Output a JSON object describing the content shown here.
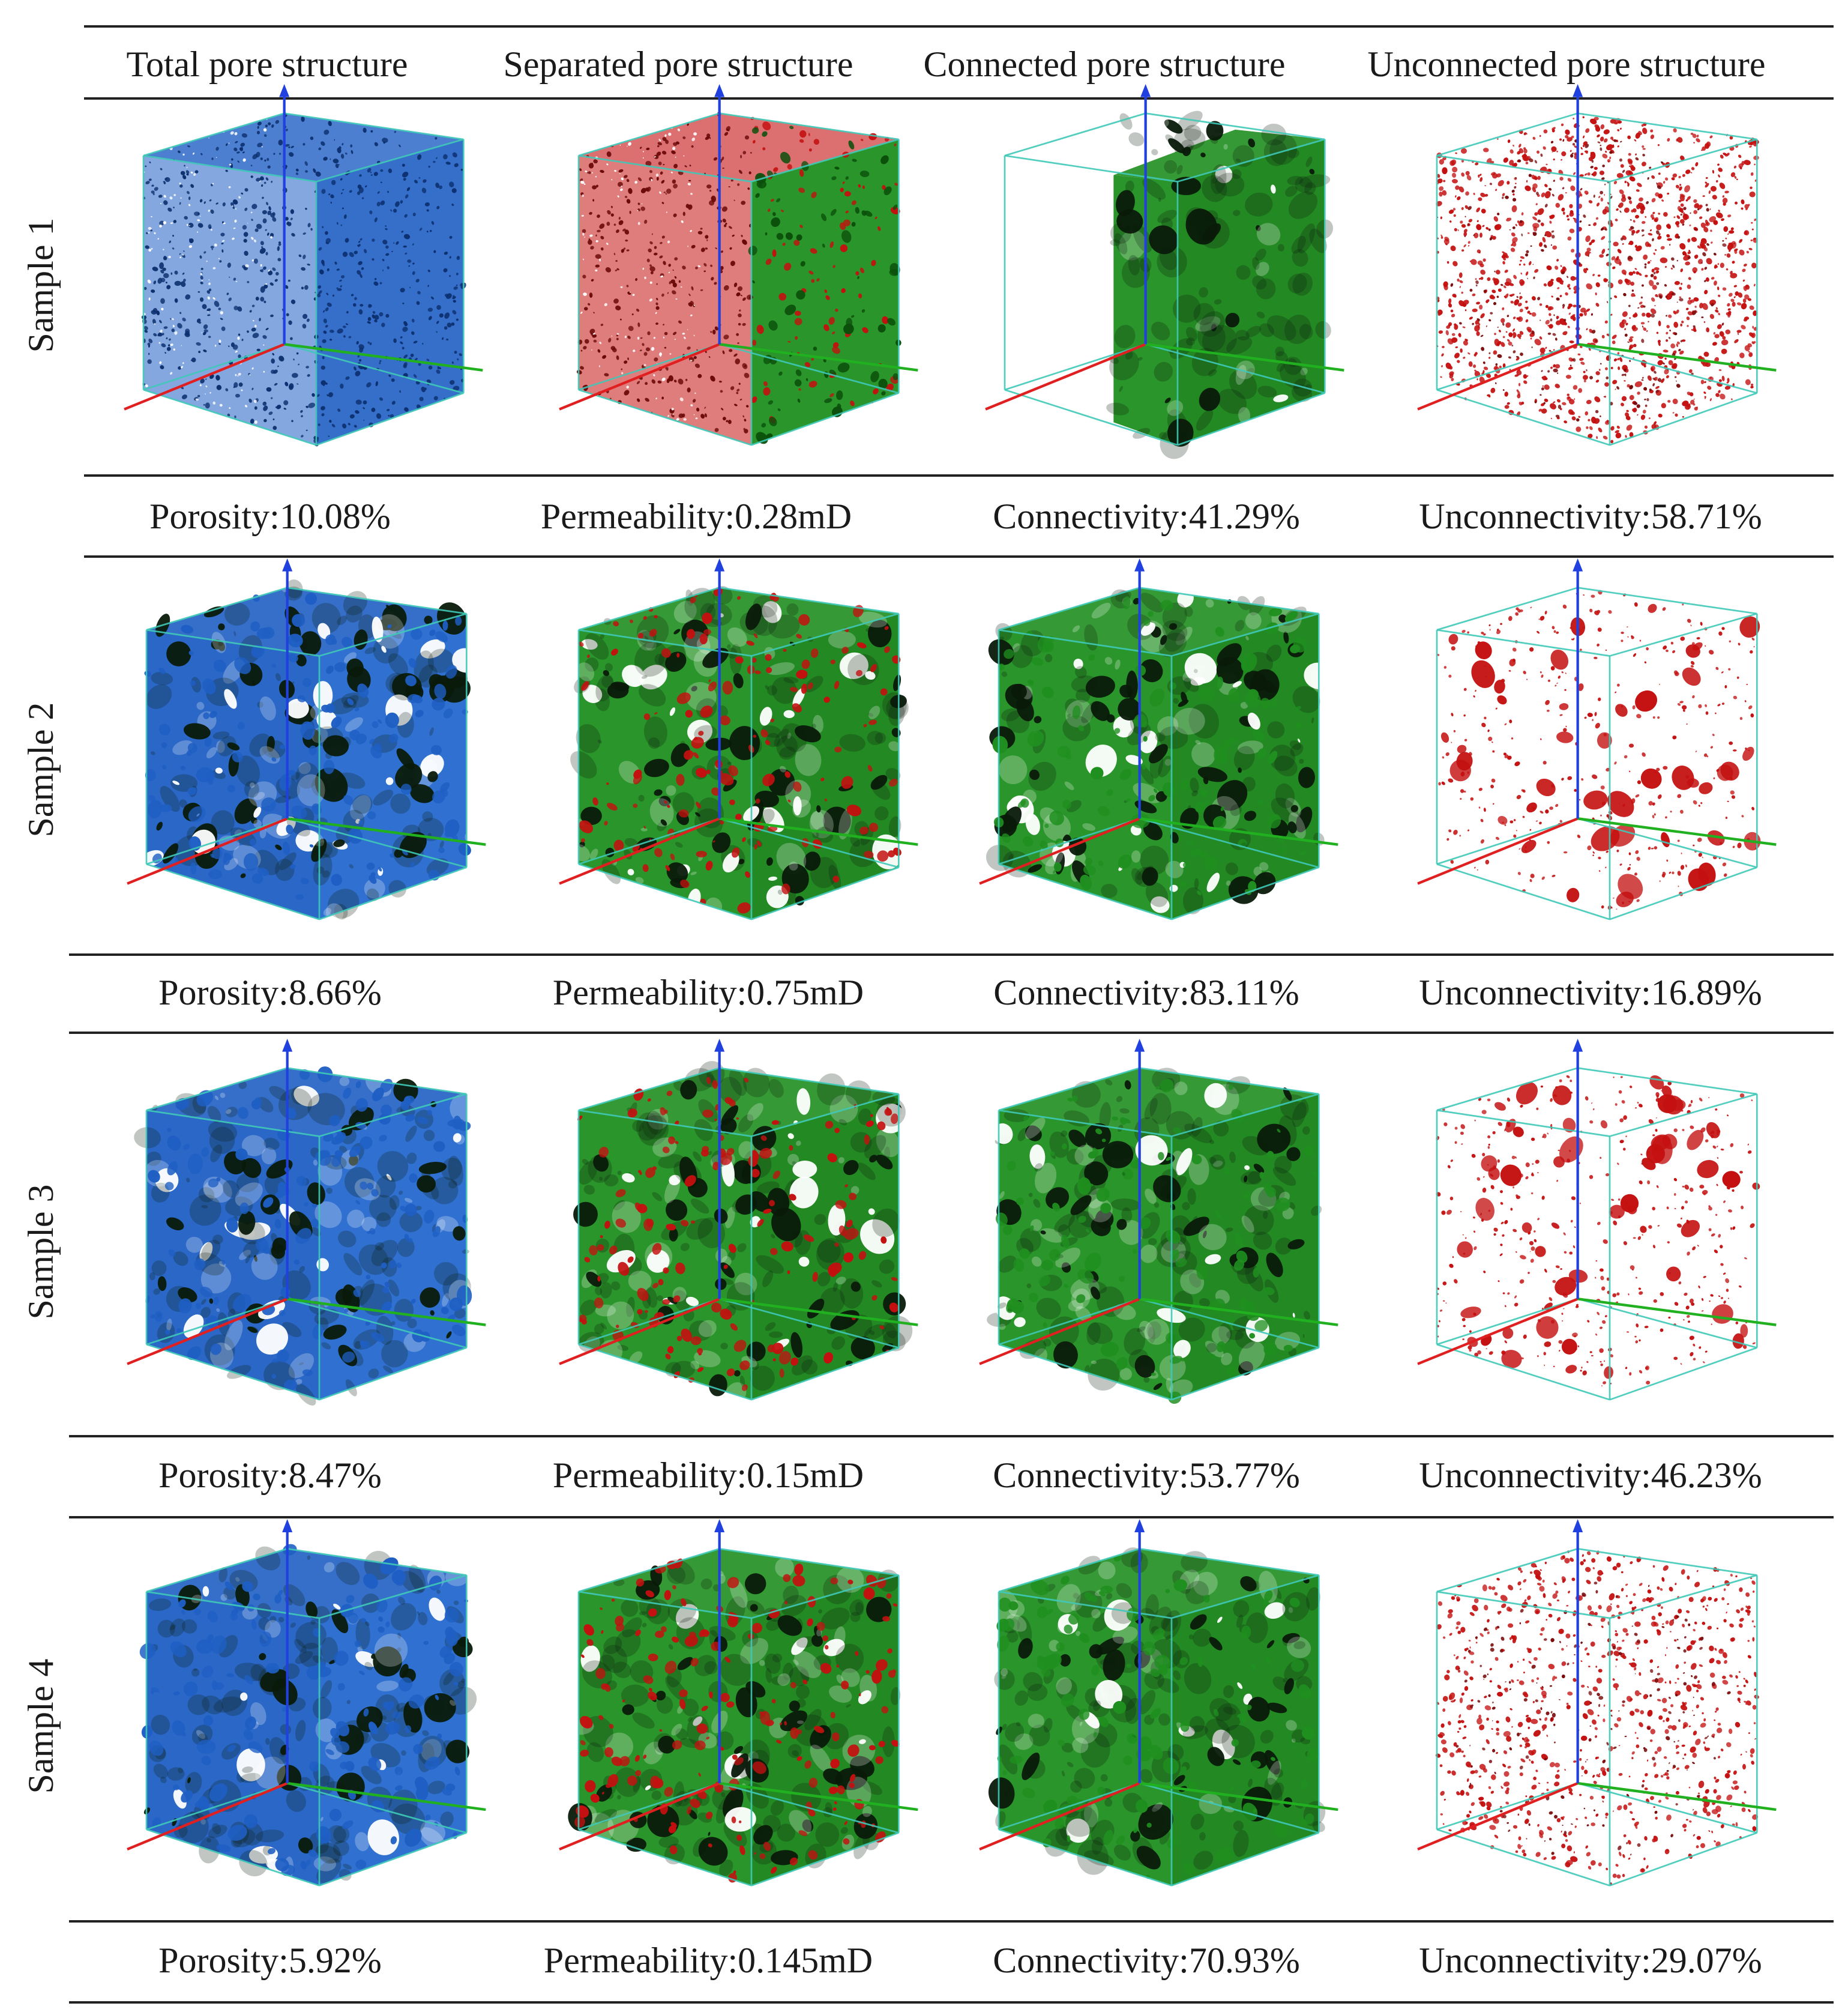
{
  "headers": [
    "Total pore structure",
    "Separated pore structure",
    "Connected pore structure",
    "Unconnected pore structure"
  ],
  "rows": [
    {
      "label": "Sample 1",
      "metrics": [
        "Porosity:10.08%",
        "Permeability:0.28mD",
        "Connectivity:41.29%",
        "Unconnectivity:58.71%"
      ]
    },
    {
      "label": "Sample 2",
      "metrics": [
        "Porosity:8.66%",
        "Permeability:0.75mD",
        "Connectivity:83.11%",
        "Unconnectivity:16.89%"
      ]
    },
    {
      "label": "Sample 3",
      "metrics": [
        "Porosity:8.47%",
        "Permeability:0.15mD",
        "Connectivity:53.77%",
        "Unconnectivity:46.23%"
      ]
    },
    {
      "label": "Sample 4",
      "metrics": [
        "Porosity:5.92%",
        "Permeability:0.145mD",
        "Connectivity:70.93%",
        "Unconnectivity:29.07%"
      ]
    }
  ],
  "colors": {
    "total_pores": "#1f5fc4",
    "connected_pores": "#1f8f1f",
    "unconnected_pores": "#c41010",
    "cube_edges": "#3fc9b8",
    "axis_x": "#e02020",
    "axis_y": "#20b020",
    "axis_z": "#2040e0",
    "rules": "#222222"
  }
}
